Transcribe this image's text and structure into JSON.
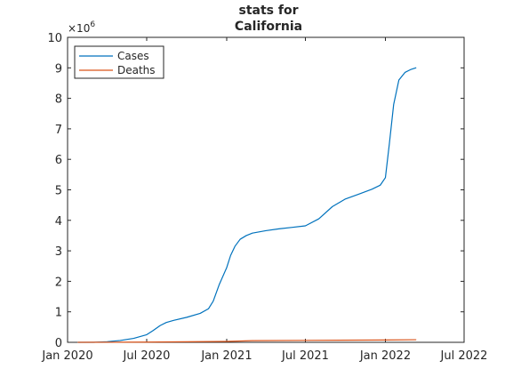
{
  "chart_data": {
    "type": "line",
    "title_lines": [
      "stats for",
      "California"
    ],
    "xlabel": "",
    "ylabel": "",
    "y_exponent_label": [
      "×10",
      "6"
    ],
    "x_range": [
      "2020-01-01",
      "2022-07-01"
    ],
    "ylim": [
      0,
      10
    ],
    "y_unit_multiplier": 1000000,
    "x_ticks": [
      {
        "date": "2020-01-01",
        "label": "Jan 2020"
      },
      {
        "date": "2020-07-01",
        "label": "Jul 2020"
      },
      {
        "date": "2021-01-01",
        "label": "Jan 2021"
      },
      {
        "date": "2021-07-01",
        "label": "Jul 2021"
      },
      {
        "date": "2022-01-01",
        "label": "Jan 2022"
      },
      {
        "date": "2022-07-01",
        "label": "Jul 2022"
      }
    ],
    "y_ticks": [
      0,
      1,
      2,
      3,
      4,
      5,
      6,
      7,
      8,
      9,
      10
    ],
    "grid": false,
    "legend_position": "top-left",
    "series": [
      {
        "name": "Cases",
        "color": "#0072BD",
        "points": [
          [
            "2020-01-25",
            0.0
          ],
          [
            "2020-03-01",
            0.0
          ],
          [
            "2020-04-01",
            0.02
          ],
          [
            "2020-05-01",
            0.06
          ],
          [
            "2020-06-01",
            0.13
          ],
          [
            "2020-07-01",
            0.25
          ],
          [
            "2020-07-15",
            0.38
          ],
          [
            "2020-08-01",
            0.55
          ],
          [
            "2020-08-15",
            0.65
          ],
          [
            "2020-09-01",
            0.72
          ],
          [
            "2020-10-01",
            0.82
          ],
          [
            "2020-11-01",
            0.95
          ],
          [
            "2020-11-20",
            1.1
          ],
          [
            "2020-12-01",
            1.35
          ],
          [
            "2020-12-15",
            1.9
          ],
          [
            "2021-01-01",
            2.45
          ],
          [
            "2021-01-10",
            2.85
          ],
          [
            "2021-01-20",
            3.15
          ],
          [
            "2021-02-01",
            3.38
          ],
          [
            "2021-02-15",
            3.5
          ],
          [
            "2021-03-01",
            3.58
          ],
          [
            "2021-04-01",
            3.66
          ],
          [
            "2021-05-01",
            3.72
          ],
          [
            "2021-06-01",
            3.77
          ],
          [
            "2021-07-01",
            3.82
          ],
          [
            "2021-08-01",
            4.05
          ],
          [
            "2021-09-01",
            4.45
          ],
          [
            "2021-10-01",
            4.7
          ],
          [
            "2021-11-01",
            4.86
          ],
          [
            "2021-12-01",
            5.02
          ],
          [
            "2021-12-20",
            5.15
          ],
          [
            "2022-01-01",
            5.4
          ],
          [
            "2022-01-10",
            6.5
          ],
          [
            "2022-01-20",
            7.8
          ],
          [
            "2022-02-01",
            8.6
          ],
          [
            "2022-02-15",
            8.85
          ],
          [
            "2022-03-01",
            8.95
          ],
          [
            "2022-03-12",
            9.0
          ]
        ]
      },
      {
        "name": "Deaths",
        "color": "#D95319",
        "points": [
          [
            "2020-01-25",
            0.0
          ],
          [
            "2020-07-01",
            0.007
          ],
          [
            "2021-01-01",
            0.03
          ],
          [
            "2021-03-01",
            0.055
          ],
          [
            "2021-07-01",
            0.064
          ],
          [
            "2022-01-01",
            0.076
          ],
          [
            "2022-03-12",
            0.086
          ]
        ]
      }
    ]
  }
}
